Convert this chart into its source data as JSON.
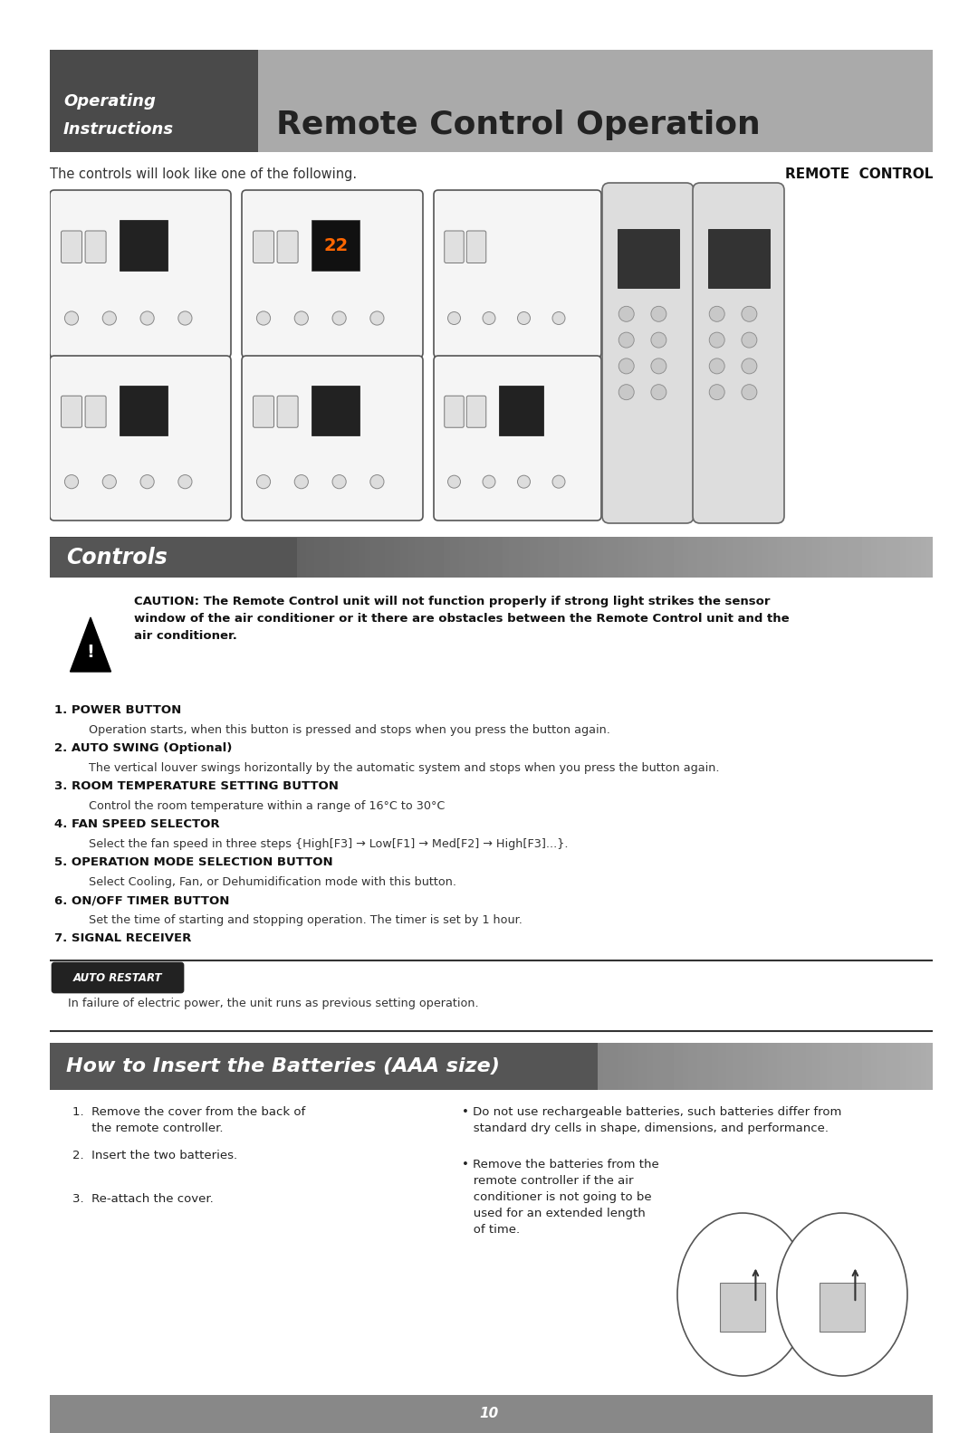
{
  "page_bg": "#ffffff",
  "header_dark_bg": "#4a4a4a",
  "header_light_bg": "#aaaaaa",
  "header_italic1": "Operating",
  "header_italic2": "Instructions",
  "header_main_text": "Remote Control Operation",
  "sub_caption": "The controls will look like one of the following.",
  "remote_control_label": "REMOTE  CONTROL",
  "controls_banner_text": "Controls",
  "caution_text_bold": "CAUTION: The Remote Control unit will not function properly if strong light strikes the sensor\nwindow of the air conditioner or it there are obstacles between the Remote Control unit and the\nair conditioner.",
  "numbered_items": [
    {
      "num": "1.",
      "heading": "POWER BUTTON",
      "body": "Operation starts, when this button is pressed and stops when you press the button again."
    },
    {
      "num": "2.",
      "heading": "AUTO SWING (Optional)",
      "body": "The vertical louver swings horizontally by the automatic system and stops when you press the button again."
    },
    {
      "num": "3.",
      "heading": "ROOM TEMPERATURE SETTING BUTTON",
      "body": "Control the room temperature within a range of 16°C to 30°C"
    },
    {
      "num": "4.",
      "heading": "FAN SPEED SELECTOR",
      "body": "Select the fan speed in three steps {High[F3] → Low[F1] → Med[F2] → High[F3]...}."
    },
    {
      "num": "5.",
      "heading": "OPERATION MODE SELECTION BUTTON",
      "body": "Select Cooling, Fan, or Dehumidification mode with this button."
    },
    {
      "num": "6.",
      "heading": "ON/OFF TIMER BUTTON",
      "body": "Set the time of starting and stopping operation. The timer is set by 1 hour."
    },
    {
      "num": "7.",
      "heading": "SIGNAL RECEIVER",
      "body": ""
    }
  ],
  "auto_restart_label": "AUTO RESTART",
  "auto_restart_text": "In failure of electric power, the unit runs as previous setting operation.",
  "batteries_banner_text": "How to Insert the Batteries (AAA size)",
  "left_list_items": [
    "1.  Remove the cover from the back of\n     the remote controller.",
    "2.  Insert the two batteries.",
    "3.  Re-attach the cover."
  ],
  "right_bullet1": "• Do not use rechargeable batteries, such batteries differ from\n   standard dry cells in shape, dimensions, and performance.",
  "right_bullet2": "• Remove the batteries from the\n   remote controller if the air\n   conditioner is not going to be\n   used for an extended length\n   of time.",
  "footer_bg": "#888888",
  "footer_text": "10"
}
